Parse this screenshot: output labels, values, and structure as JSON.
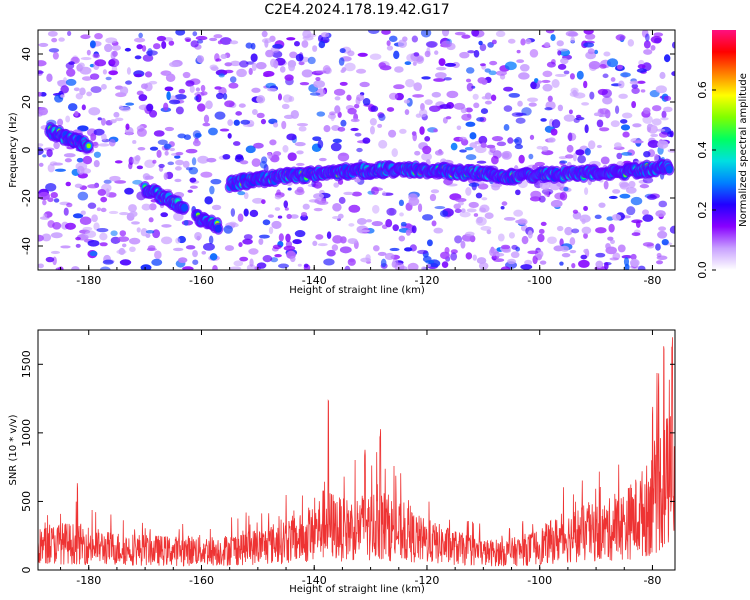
{
  "title": "C2E4.2024.178.19.42.G17",
  "chart_data": [
    {
      "type": "heatmap",
      "xlabel": "Height of straight line (km)",
      "ylabel": "Frequency (Hz)",
      "xlim": [
        -189,
        -76
      ],
      "ylim": [
        -50,
        50
      ],
      "xticks": [
        "-180",
        "-160",
        "-140",
        "-120",
        "-100",
        "-80"
      ],
      "yticks": [
        "-40",
        "-20",
        "0",
        "20",
        "40"
      ],
      "colorbar": {
        "label": "Normalized spectral amplitude",
        "ticks": [
          "0.0",
          "0.2",
          "0.4",
          "0.6"
        ],
        "range": [
          0,
          0.8
        ],
        "colors": [
          "#ffffff",
          "#c8a0ff",
          "#8800ff",
          "#2200ff",
          "#0080ff",
          "#00e0e0",
          "#00ff60",
          "#80ff00",
          "#ffff00",
          "#ff8000",
          "#ff0000",
          "#ff1080"
        ]
      },
      "ridges": [
        {
          "x": [
            -187,
            -180
          ],
          "y": [
            8,
            2
          ]
        },
        {
          "x": [
            -170,
            -163
          ],
          "y": [
            -16,
            -24
          ]
        },
        {
          "x": [
            -161,
            -157
          ],
          "y": [
            -28,
            -32
          ]
        },
        {
          "x": [
            -155,
            -145,
            -135,
            -125,
            -115,
            -105,
            -95,
            -85,
            -77
          ],
          "y": [
            -14,
            -11,
            -9,
            -8,
            -9,
            -11,
            -10,
            -9,
            -7
          ]
        }
      ]
    },
    {
      "type": "line",
      "xlabel": "Height of straight line (km)",
      "ylabel": "SNR (10 * v/v)",
      "xlim": [
        -189,
        -76
      ],
      "ylim": [
        0,
        1750
      ],
      "xticks": [
        "-180",
        "-160",
        "-140",
        "-120",
        "-100",
        "-80"
      ],
      "yticks": [
        "0",
        "500",
        "1000",
        "1500"
      ],
      "color": "#ee3333",
      "x": [
        -189,
        -185,
        -181,
        -177,
        -173,
        -169,
        -165,
        -161,
        -157,
        -153,
        -149,
        -145,
        -141,
        -138,
        -135,
        -131,
        -128,
        -125,
        -121,
        -117,
        -113,
        -109,
        -105,
        -101,
        -97,
        -93,
        -89,
        -85,
        -81,
        -79,
        -77,
        -76
      ],
      "y": [
        230,
        270,
        260,
        220,
        210,
        200,
        190,
        200,
        190,
        220,
        240,
        300,
        320,
        480,
        400,
        440,
        460,
        380,
        300,
        250,
        200,
        170,
        180,
        220,
        300,
        360,
        380,
        450,
        600,
        800,
        900,
        700
      ],
      "peaks": [
        {
          "x": -182,
          "y": 640
        },
        {
          "x": -137.5,
          "y": 1300
        },
        {
          "x": -128.3,
          "y": 1040
        },
        {
          "x": -131,
          "y": 880
        },
        {
          "x": -78,
          "y": 1700
        },
        {
          "x": -76.5,
          "y": 1750
        },
        {
          "x": -80,
          "y": 1220
        }
      ]
    }
  ]
}
